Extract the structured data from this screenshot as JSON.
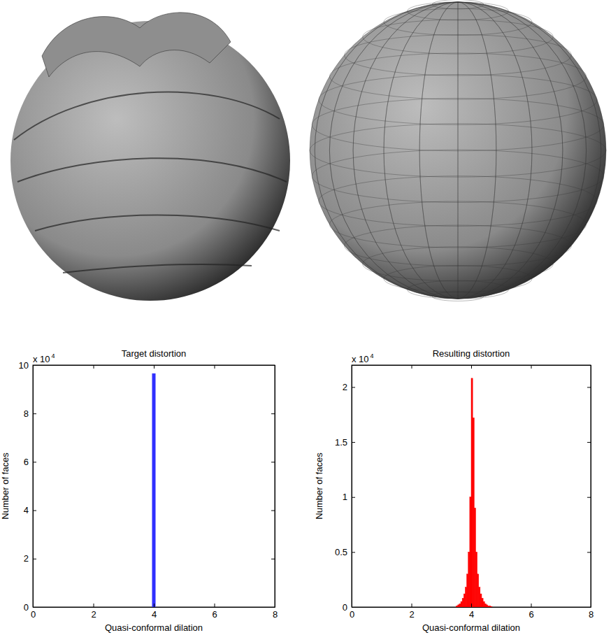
{
  "chart_data": [
    {
      "type": "histogram",
      "title": "Target distortion",
      "x_label": "Quasi-conformal dilation",
      "y_label": "Number of faces",
      "y_multiplier": {
        "text": "x 10",
        "exponent": "4"
      },
      "bins": [
        3.95,
        4.05
      ],
      "counts": [
        9.65
      ],
      "color": "#3030ff",
      "xlim": [
        0,
        8
      ],
      "xticks": [
        0,
        2,
        4,
        6,
        8
      ],
      "ylim": [
        0,
        10
      ],
      "yticks": [
        0,
        2,
        4,
        6,
        8,
        10
      ]
    },
    {
      "type": "histogram",
      "title": "Resulting distortion",
      "x_label": "Quasi-conformal dilation",
      "y_label": "Number of faces",
      "y_multiplier": {
        "text": "x 10",
        "exponent": "4"
      },
      "bins": [
        3.5,
        3.55,
        3.6,
        3.65,
        3.7,
        3.75,
        3.8,
        3.85,
        3.9,
        3.95,
        4.0,
        4.05,
        4.1,
        4.15,
        4.2,
        4.25,
        4.3,
        4.35,
        4.4,
        4.45,
        4.5,
        4.55,
        4.6,
        4.65,
        4.7
      ],
      "counts": [
        0.01,
        0.02,
        0.03,
        0.05,
        0.08,
        0.12,
        0.18,
        0.3,
        0.5,
        1.0,
        2.08,
        1.72,
        0.9,
        0.5,
        0.3,
        0.18,
        0.12,
        0.08,
        0.05,
        0.03,
        0.02,
        0.01,
        0.01,
        0.005
      ],
      "color": "#ff0000",
      "xlim": [
        0,
        8
      ],
      "xticks": [
        0,
        2,
        4,
        6,
        8
      ],
      "ylim": [
        0,
        2.2
      ],
      "yticks": [
        0,
        0.5,
        1,
        1.5,
        2
      ]
    }
  ]
}
